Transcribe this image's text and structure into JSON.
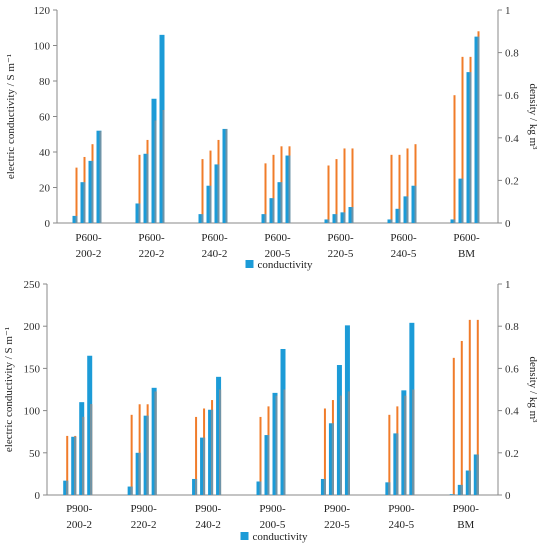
{
  "colors": {
    "conductivity": "#1c9bd7",
    "density": "#f07c2a",
    "overlap": "#6f94a8"
  },
  "chart_data": [
    {
      "type": "bar",
      "ylabel": "electric conductivity / S m⁻¹",
      "y2label": "density / kg m³",
      "ylim": [
        0,
        120
      ],
      "yticks": [
        0,
        20,
        40,
        60,
        80,
        100,
        120
      ],
      "y2lim": [
        0,
        1
      ],
      "y2ticks": [
        "0",
        "0.2",
        "0.4",
        "0.6",
        "0.8",
        "1"
      ],
      "legend": [
        "conductivity"
      ],
      "legend_position": "bottom",
      "categories": [
        [
          "P600-",
          "200-2"
        ],
        [
          "P600-",
          "220-2"
        ],
        [
          "P600-",
          "240-2"
        ],
        [
          "P600-",
          "200-5"
        ],
        [
          "P600-",
          "220-5"
        ],
        [
          "P600-",
          "240-5"
        ],
        [
          "P600-",
          "BM"
        ]
      ],
      "series": [
        {
          "values": [
            [
              4,
              23,
              35,
              52
            ],
            [
              11,
              39,
              70,
              106
            ],
            [
              5,
              21,
              33,
              53
            ],
            [
              5,
              14,
              23,
              38
            ],
            [
              2,
              5,
              6,
              9
            ],
            [
              2,
              8,
              15,
              21
            ],
            [
              2,
              25,
              85,
              105
            ]
          ]
        },
        {
          "axis": "right",
          "values": [
            [
              0.26,
              0.31,
              0.37,
              0.43
            ],
            [
              0.32,
              0.39,
              0.48,
              0.53
            ],
            [
              0.3,
              0.34,
              0.39,
              0.44
            ],
            [
              0.28,
              0.32,
              0.36,
              0.36
            ],
            [
              0.27,
              0.3,
              0.35,
              0.35
            ],
            [
              0.32,
              0.32,
              0.35,
              0.37
            ],
            [
              0.6,
              0.78,
              0.78,
              0.9
            ]
          ]
        }
      ]
    },
    {
      "type": "bar",
      "ylabel": "electric conductivity / S m⁻¹",
      "y2label": "density / kg m³",
      "ylim": [
        0,
        250
      ],
      "yticks": [
        0,
        50,
        100,
        150,
        200,
        250
      ],
      "y2lim": [
        0,
        1
      ],
      "y2ticks": [
        "0",
        "0.2",
        "0.4",
        "0.6",
        "0.8",
        "1"
      ],
      "legend": [
        "conductivity"
      ],
      "legend_position": "bottom",
      "categories": [
        [
          "P900-",
          "200-2"
        ],
        [
          "P900-",
          "220-2"
        ],
        [
          "P900-",
          "240-2"
        ],
        [
          "P900-",
          "200-5"
        ],
        [
          "P900-",
          "220-5"
        ],
        [
          "P900-",
          "240-5"
        ],
        [
          "P900-",
          "BM"
        ]
      ],
      "series": [
        {
          "values": [
            [
              17,
              69,
              110,
              165
            ],
            [
              10,
              50,
              94,
              127
            ],
            [
              19,
              68,
              101,
              140
            ],
            [
              16,
              71,
              121,
              173
            ],
            [
              19,
              85,
              154,
              201
            ],
            [
              15,
              73,
              124,
              204
            ],
            [
              1,
              12,
              29,
              48
            ]
          ]
        },
        {
          "axis": "right",
          "values": [
            [
              0.28,
              0.28,
              0.37,
              0.43
            ],
            [
              0.38,
              0.43,
              0.43,
              0.49
            ],
            [
              0.37,
              0.41,
              0.45,
              0.5
            ],
            [
              0.37,
              0.42,
              0.47,
              0.5
            ],
            [
              0.41,
              0.45,
              0.47,
              0.49
            ],
            [
              0.38,
              0.42,
              0.47,
              0.5
            ],
            [
              0.65,
              0.73,
              0.83,
              0.83
            ]
          ]
        }
      ]
    }
  ]
}
